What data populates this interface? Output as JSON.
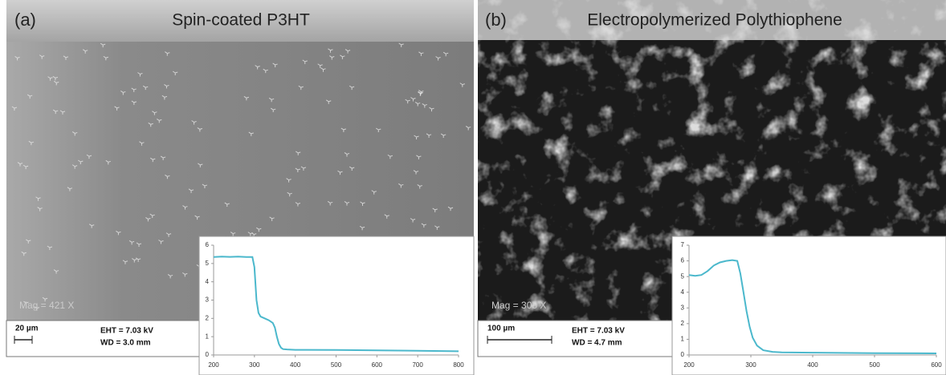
{
  "panels": [
    {
      "label": "(a)",
      "title": "Spin-coated P3HT",
      "mag": "Mag = 421 X",
      "scale_bar": "20 µm",
      "eht": "EHT = 7.03 kV",
      "wd": "WD = 3.0 mm"
    },
    {
      "label": "(b)",
      "title": "Electropolymerized Polythiophene",
      "mag": "Mag = 305 X",
      "scale_bar": "100 µm",
      "eht": "EHT = 7.03 kV",
      "wd": "WD = 4.7 mm"
    }
  ],
  "chart_data": [
    {
      "type": "line",
      "color": "#4bb8cc",
      "x": [
        200,
        220,
        240,
        260,
        280,
        295,
        300,
        305,
        310,
        315,
        325,
        335,
        345,
        350,
        355,
        360,
        365,
        370,
        380,
        400,
        500,
        600,
        700,
        800
      ],
      "values": [
        5.35,
        5.38,
        5.36,
        5.38,
        5.35,
        5.35,
        4.8,
        3.0,
        2.3,
        2.1,
        2.0,
        1.9,
        1.75,
        1.5,
        1.0,
        0.6,
        0.4,
        0.32,
        0.3,
        0.28,
        0.27,
        0.25,
        0.23,
        0.2
      ],
      "xlim": [
        200,
        800
      ],
      "xticks": [
        200,
        300,
        400,
        500,
        600,
        700,
        800
      ],
      "ylim": [
        0,
        6
      ],
      "yticks": [
        0,
        1,
        2,
        3,
        4,
        5,
        6
      ]
    },
    {
      "type": "line",
      "color": "#4bb8cc",
      "x": [
        200,
        210,
        220,
        230,
        240,
        250,
        260,
        270,
        278,
        283,
        288,
        293,
        298,
        303,
        310,
        320,
        335,
        350,
        400,
        500,
        600
      ],
      "values": [
        5.1,
        5.05,
        5.1,
        5.35,
        5.7,
        5.9,
        6.0,
        6.05,
        6.0,
        5.2,
        4.0,
        2.8,
        1.8,
        1.1,
        0.6,
        0.3,
        0.2,
        0.17,
        0.15,
        0.12,
        0.1
      ],
      "xlim": [
        200,
        600
      ],
      "xticks": [
        200,
        300,
        400,
        500,
        600
      ],
      "ylim": [
        0,
        7
      ],
      "yticks": [
        0,
        1,
        2,
        3,
        4,
        5,
        6,
        7
      ]
    }
  ]
}
